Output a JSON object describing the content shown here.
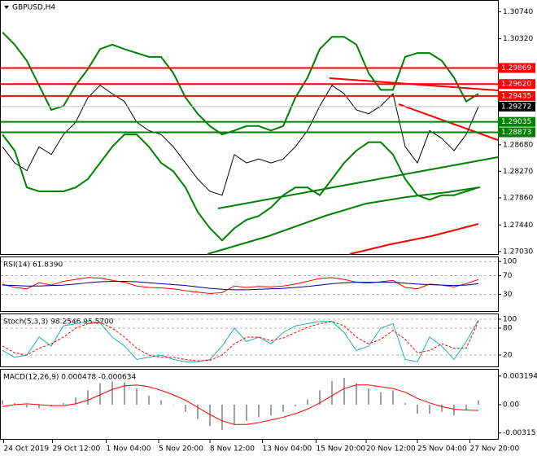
{
  "chart_data": [
    {
      "type": "line",
      "title": "GBPUSD,H4",
      "ylim": [
        1.2699,
        1.3092
      ],
      "yticks": [
        {
          "value": 1.3074,
          "label": "1.30740"
        },
        {
          "value": 1.3032,
          "label": "1.30320"
        },
        {
          "value": 1.2868,
          "label": "1.28680"
        },
        {
          "value": 1.2827,
          "label": "1.28270"
        },
        {
          "value": 1.2786,
          "label": "1.27860"
        },
        {
          "value": 1.2744,
          "label": "1.27440"
        },
        {
          "value": 1.2703,
          "label": "1.27030"
        }
      ],
      "xticks": [
        {
          "value": 0.1,
          "label": "24 Oct 2019"
        },
        {
          "value": 4.1,
          "label": "29 Oct 12:00"
        },
        {
          "value": 8.5,
          "label": "1 Nov 04:00"
        },
        {
          "value": 12.8,
          "label": "5 Nov 20:00"
        },
        {
          "value": 17,
          "label": "8 Nov 12:00"
        },
        {
          "value": 21.3,
          "label": "13 Nov 04:00"
        },
        {
          "value": 25.7,
          "label": "15 Nov 20:00"
        },
        {
          "value": 29.8,
          "label": "20 Nov 12:00"
        },
        {
          "value": 34,
          "label": "25 Nov 04:00"
        },
        {
          "value": 38.3,
          "label": "27 Nov 20:00"
        }
      ],
      "levels": [
        {
          "value": 1.29869,
          "color": "#ff0000"
        },
        {
          "value": {
            "value": 1.2962,
            "label": "1.29620"
          },
          "color": "#ff0000"
        },
        {
          "value": 1.29435,
          "color": "#ff0000"
        },
        {
          "value": 1.29035,
          "color": "#008000"
        },
        {
          "value": 1.28873,
          "color": "#008000"
        }
      ],
      "last_price": 1.29272,
      "series": [
        {
          "color": "#000000",
          "values": [
            1.2865,
            1.284,
            1.2828,
            1.2865,
            1.2853,
            1.2884,
            1.2903,
            1.2941,
            1.296,
            1.2947,
            1.2935,
            1.2903,
            1.289,
            1.2884,
            1.2865,
            1.284,
            1.2815,
            1.2796,
            1.279,
            1.2853,
            1.284,
            1.2846,
            1.284,
            1.2846,
            1.2865,
            1.289,
            1.2928,
            1.296,
            1.2947,
            1.2922,
            1.2916,
            1.2928,
            1.2947,
            1.2865,
            1.284,
            1.289,
            1.2878,
            1.2859,
            1.2884,
            1.2927
          ]
        },
        {
          "color": "#008000",
          "values": [
            1.3042,
            1.3023,
            1.2998,
            1.296,
            1.2922,
            1.2928,
            1.296,
            1.2985,
            1.3016,
            1.3023,
            1.3016,
            1.301,
            1.3004,
            1.3004,
            1.2979,
            1.2941,
            1.2916,
            1.2897,
            1.2884,
            1.289,
            1.2897,
            1.2897,
            1.289,
            1.2897,
            1.2941,
            1.2972,
            1.3016,
            1.3035,
            1.3035,
            1.3023,
            1.2979,
            1.2953,
            1.2953,
            1.3004,
            1.301,
            1.301,
            1.2998,
            1.2972,
            1.2935,
            1.2947
          ]
        },
        {
          "color": "#008000",
          "values": [
            1.2884,
            1.2859,
            1.2802,
            1.2796,
            1.2796,
            1.2796,
            1.2802,
            1.2815,
            1.284,
            1.2865,
            1.2884,
            1.2884,
            1.2865,
            1.284,
            1.2827,
            1.2802,
            1.2764,
            1.2739,
            1.272,
            1.2739,
            1.2752,
            1.2758,
            1.2771,
            1.279,
            1.2802,
            1.2802,
            1.279,
            1.2815,
            1.284,
            1.2859,
            1.2872,
            1.2872,
            1.2853,
            1.2815,
            1.279,
            1.2783,
            1.279,
            1.279,
            1.2796,
            1.2802
          ]
        }
      ]
    },
    {
      "type": "line",
      "title": "RSI(14) 61.8390",
      "ylim": [
        -7,
        109
      ],
      "yticks": [
        100,
        70,
        30
      ],
      "grid": true,
      "series": [
        {
          "color": "#ff0000",
          "values": [
            52,
            45,
            42,
            55,
            50,
            58,
            62,
            66,
            65,
            60,
            56,
            48,
            45,
            44,
            42,
            38,
            35,
            32,
            34,
            48,
            45,
            47,
            46,
            48,
            52,
            58,
            64,
            66,
            62,
            56,
            54,
            57,
            60,
            45,
            42,
            52,
            50,
            46,
            53,
            61.839
          ]
        },
        {
          "color": "#00008b",
          "values": [
            50,
            49,
            48,
            48,
            49,
            50,
            52,
            55,
            57,
            58,
            58,
            57,
            55,
            53,
            51,
            49,
            46,
            43,
            41,
            40,
            40,
            41,
            42,
            43,
            45,
            47,
            50,
            53,
            55,
            56,
            56,
            56,
            56,
            54,
            52,
            51,
            50,
            49,
            50,
            53
          ]
        }
      ]
    },
    {
      "type": "line",
      "title": "Stoch(5,3,3) 98.2546 95.5700",
      "ylim": [
        -7.3,
        110.9
      ],
      "yticks": [
        100,
        80,
        20
      ],
      "grid": true,
      "series": [
        {
          "color": "#20b2aa",
          "values": [
            30,
            15,
            20,
            60,
            40,
            85,
            90,
            95,
            92,
            60,
            40,
            10,
            15,
            20,
            10,
            5,
            5,
            10,
            40,
            80,
            50,
            60,
            45,
            70,
            85,
            90,
            95,
            95,
            70,
            30,
            40,
            80,
            90,
            10,
            5,
            60,
            40,
            10,
            50,
            98.2546
          ]
        },
        {
          "color": "#ff0000",
          "dashed": true,
          "values": [
            40,
            25,
            20,
            35,
            45,
            60,
            80,
            90,
            93,
            80,
            60,
            35,
            20,
            15,
            15,
            10,
            7,
            8,
            20,
            45,
            60,
            60,
            52,
            58,
            70,
            82,
            90,
            95,
            85,
            60,
            45,
            55,
            75,
            55,
            25,
            30,
            45,
            35,
            35,
            95.57
          ]
        }
      ]
    },
    {
      "type": "bar",
      "title": "MACD(12,26,9) 0.000478 -0.000634",
      "ylim": [
        -0.0039,
        0.0039
      ],
      "yticks": [
        0.003194,
        {
          "value": 0,
          "label": "0.00"
        },
        -0.00315
      ],
      "color": "#a0a0a0",
      "values": [
        0.0005,
        0.0002,
        -0.0003,
        -0.0004,
        -0.0002,
        0.0002,
        0.0008,
        0.0016,
        0.0024,
        0.0026,
        0.0025,
        0.0018,
        0.001,
        0.0005,
        0,
        -0.0008,
        -0.0016,
        -0.0024,
        -0.0028,
        -0.0022,
        -0.0018,
        -0.0014,
        -0.0012,
        -0.0008,
        -0.0002,
        0.0006,
        0.0016,
        0.0026,
        0.003,
        0.0024,
        0.0018,
        0.0014,
        0.0016,
        0.0002,
        -0.001,
        -0.001,
        -0.0008,
        -0.0012,
        -0.0006,
        0.000478
      ],
      "series": [
        {
          "color": "#ff0000",
          "values": [
            -0.0002,
            0,
            0.0001,
            0,
            -0.0001,
            -0.0001,
            0.0001,
            0.0005,
            0.0011,
            0.0017,
            0.0021,
            0.0022,
            0.002,
            0.0016,
            0.0011,
            0.0005,
            -0.0003,
            -0.0011,
            -0.0018,
            -0.0022,
            -0.0022,
            -0.002,
            -0.0017,
            -0.0014,
            -0.001,
            -0.0005,
            0.0002,
            0.001,
            0.0018,
            0.0022,
            0.0022,
            0.002,
            0.0018,
            0.0014,
            0.0007,
            0.0002,
            -0.0002,
            -0.0005,
            -0.0006,
            -0.000634
          ]
        }
      ]
    }
  ]
}
